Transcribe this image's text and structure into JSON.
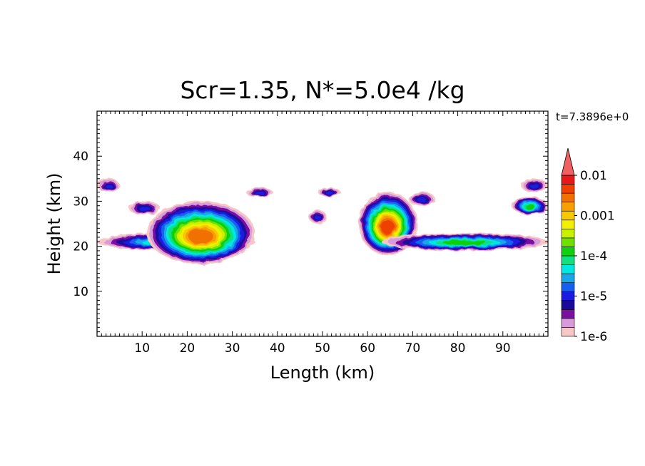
{
  "chart_data": {
    "type": "heatmap",
    "title": "Scr=1.35, N*=5.0e4 /kg",
    "time_label": "t=7.3896e+0",
    "xlabel": "Length  (km)",
    "ylabel": "Height  (km)",
    "xlim": [
      0,
      100
    ],
    "ylim": [
      0,
      50
    ],
    "x_ticks": [
      10,
      20,
      30,
      40,
      50,
      60,
      70,
      80,
      90
    ],
    "y_ticks": [
      10,
      20,
      30,
      40
    ],
    "colorbar": {
      "scale": "log",
      "range": [
        1e-06,
        0.01
      ],
      "extend": "max",
      "tick_labels": [
        "0.01",
        "0.001",
        "1e-4",
        "1e-5",
        "1e-6"
      ],
      "tick_values": [
        0.01,
        0.001,
        0.0001,
        1e-05,
        1e-06
      ],
      "colors": [
        "#f7c6c6",
        "#d89ad8",
        "#7a10a0",
        "#1a0a9a",
        "#1a1ae0",
        "#1560f0",
        "#18a8e8",
        "#00e8e0",
        "#10e080",
        "#10d010",
        "#70e000",
        "#c8f000",
        "#f0f000",
        "#f8c800",
        "#f8a000",
        "#f07000",
        "#f04000",
        "#e81818"
      ],
      "extend_color": "#f06060"
    },
    "cloud_regions": [
      {
        "x": [
          0,
          5
        ],
        "y": [
          32,
          35
        ],
        "peak": 1e-05
      },
      {
        "x": [
          0,
          35
        ],
        "y": [
          19,
          23
        ],
        "peak": 0.0001
      },
      {
        "x": [
          7,
          14
        ],
        "y": [
          27,
          30
        ],
        "peak": 1e-05
      },
      {
        "x": [
          11,
          35
        ],
        "y": [
          16,
          30
        ],
        "peak": 0.003
      },
      {
        "x": [
          33,
          39
        ],
        "y": [
          31,
          33
        ],
        "peak": 1e-05
      },
      {
        "x": [
          47,
          51
        ],
        "y": [
          25,
          28
        ],
        "peak": 1e-05
      },
      {
        "x": [
          49,
          54
        ],
        "y": [
          31,
          33
        ],
        "peak": 1e-05
      },
      {
        "x": [
          58,
          71
        ],
        "y": [
          18,
          32
        ],
        "peak": 0.004
      },
      {
        "x": [
          69,
          75
        ],
        "y": [
          29,
          32
        ],
        "peak": 1e-05
      },
      {
        "x": [
          63,
          100
        ],
        "y": [
          19,
          23
        ],
        "peak": 0.0001
      },
      {
        "x": [
          92,
          100
        ],
        "y": [
          27,
          31
        ],
        "peak": 0.0001
      },
      {
        "x": [
          94,
          100
        ],
        "y": [
          32,
          35
        ],
        "peak": 1e-05
      }
    ]
  }
}
